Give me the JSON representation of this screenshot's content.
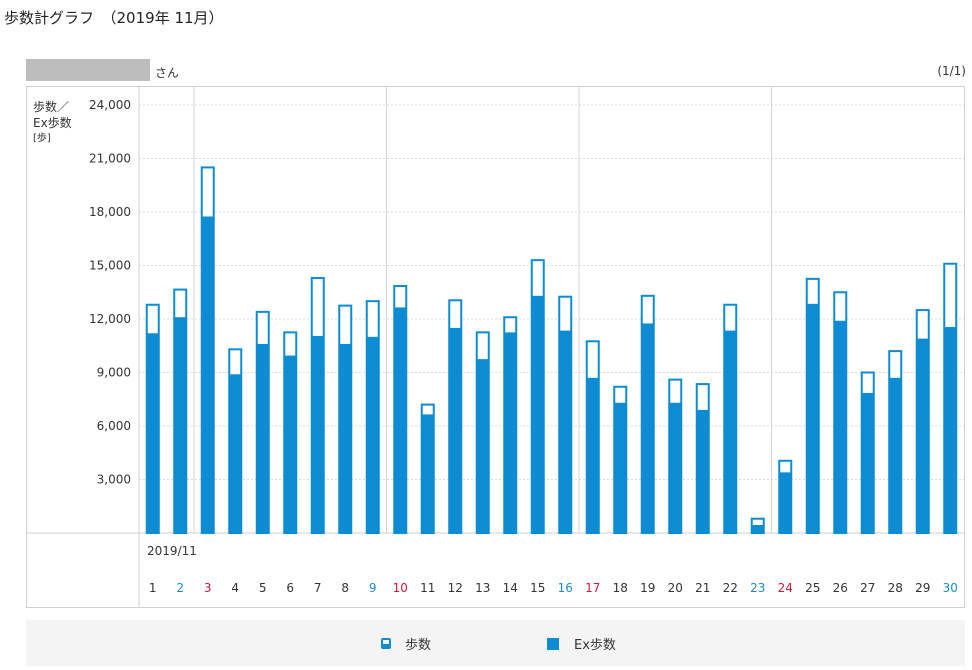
{
  "page": {
    "title": "歩数計グラフ　（2019年 11月）",
    "name_suffix": "さん",
    "page_count": "(1/1)"
  },
  "legend": {
    "steps_label": "歩数",
    "ex_steps_label": "Ex歩数"
  },
  "colors": {
    "bar_fill": "#0d8bd3",
    "saturday": "#1a8ccf",
    "holiday": "#c8193c",
    "weekday": "#333333",
    "grid": "#d9d9d9"
  },
  "chart_data": {
    "type": "bar",
    "ylabel_lines": [
      "歩数／",
      "Ex歩数",
      "[歩]"
    ],
    "ylim": [
      0,
      24000
    ],
    "yticks": [
      "3,000",
      "6,000",
      "9,000",
      "12,000",
      "15,000",
      "18,000",
      "21,000",
      "24,000"
    ],
    "month_label": "2019/11",
    "categories": [
      "1",
      "2",
      "3",
      "4",
      "5",
      "6",
      "7",
      "8",
      "9",
      "10",
      "11",
      "12",
      "13",
      "14",
      "15",
      "16",
      "17",
      "18",
      "19",
      "20",
      "21",
      "22",
      "23",
      "24",
      "25",
      "26",
      "27",
      "28",
      "29",
      "30"
    ],
    "day_types": [
      "weekday",
      "sat",
      "holiday",
      "weekday",
      "weekday",
      "weekday",
      "weekday",
      "weekday",
      "sat",
      "holiday",
      "weekday",
      "weekday",
      "weekday",
      "weekday",
      "weekday",
      "sat",
      "holiday",
      "weekday",
      "weekday",
      "weekday",
      "weekday",
      "weekday",
      "sat",
      "holiday",
      "weekday",
      "weekday",
      "weekday",
      "weekday",
      "weekday",
      "sat"
    ],
    "series": [
      {
        "name": "歩数",
        "values": [
          12800,
          13650,
          20500,
          10300,
          12400,
          11250,
          14300,
          12750,
          13000,
          13850,
          7200,
          13050,
          11250,
          12100,
          15300,
          13250,
          10750,
          8200,
          13300,
          8600,
          8350,
          12800,
          800,
          4050,
          14250,
          13500,
          9000,
          10200,
          12500,
          15100
        ]
      },
      {
        "name": "Ex歩数",
        "values": [
          11200,
          12100,
          17750,
          8900,
          10600,
          9950,
          11050,
          10600,
          11000,
          12650,
          6650,
          11500,
          9750,
          11250,
          13300,
          11350,
          8700,
          7300,
          11750,
          7300,
          6900,
          11350,
          450,
          3400,
          12850,
          11900,
          7850,
          8700,
          10900,
          11550
        ]
      }
    ],
    "grid": true,
    "legend_position": "bottom"
  }
}
